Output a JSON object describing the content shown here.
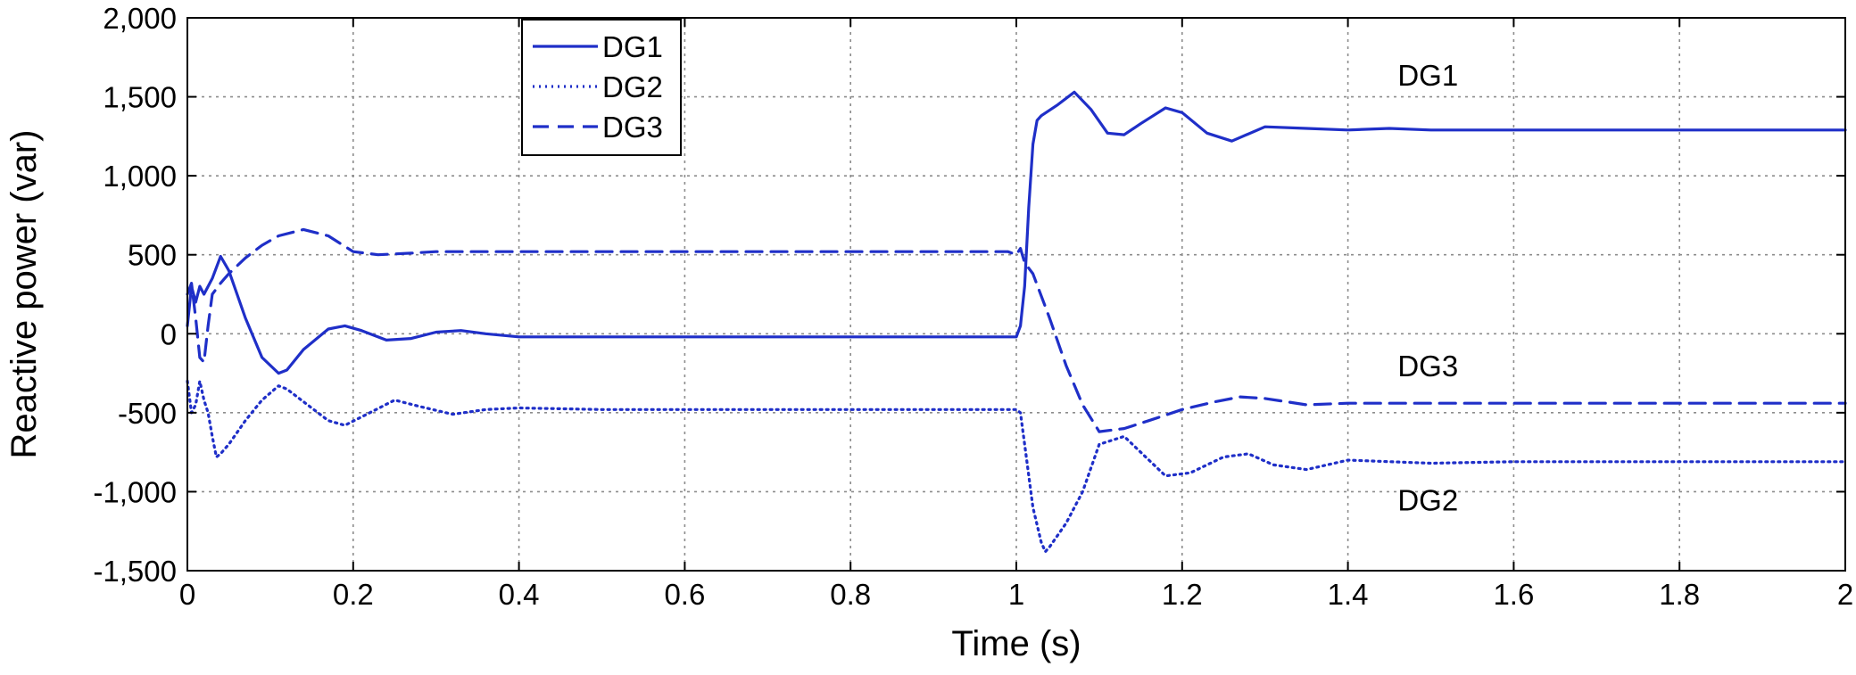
{
  "chart_data": {
    "type": "line",
    "title": "",
    "xlabel": "Time (s)",
    "ylabel": "Reactive power (var)",
    "xlim": [
      0,
      2
    ],
    "ylim": [
      -1500,
      2000
    ],
    "xticks": [
      0,
      0.2,
      0.4,
      0.6,
      0.8,
      1,
      1.2,
      1.4,
      1.6,
      1.8,
      2
    ],
    "xtick_labels": [
      "0",
      "0.2",
      "0.4",
      "0.6",
      "0.8",
      "1",
      "1.2",
      "1.4",
      "1.6",
      "1.8",
      "2"
    ],
    "yticks": [
      -1500,
      -1000,
      -500,
      0,
      500,
      1000,
      1500,
      2000
    ],
    "ytick_labels": [
      "-1,500",
      "-1,000",
      "-500",
      "0",
      "500",
      "1,000",
      "1,500",
      "2,000"
    ],
    "grid": true,
    "legend_position": "top-left",
    "line_color": "#1f2fc8",
    "series": [
      {
        "name": "DG1",
        "style": "solid",
        "x": [
          0,
          0.005,
          0.01,
          0.015,
          0.02,
          0.03,
          0.04,
          0.05,
          0.07,
          0.09,
          0.11,
          0.12,
          0.14,
          0.17,
          0.19,
          0.21,
          0.24,
          0.27,
          0.3,
          0.33,
          0.36,
          0.4,
          0.5,
          0.6,
          0.7,
          0.8,
          0.9,
          1.0,
          1.005,
          1.01,
          1.015,
          1.02,
          1.025,
          1.03,
          1.05,
          1.07,
          1.09,
          1.11,
          1.13,
          1.15,
          1.18,
          1.2,
          1.23,
          1.26,
          1.3,
          1.35,
          1.4,
          1.45,
          1.5,
          1.6,
          1.7,
          1.8,
          1.9,
          2.0
        ],
        "y": [
          50,
          300,
          200,
          300,
          250,
          350,
          490,
          400,
          100,
          -150,
          -250,
          -230,
          -100,
          30,
          50,
          20,
          -40,
          -30,
          10,
          20,
          0,
          -20,
          -20,
          -20,
          -20,
          -20,
          -20,
          -20,
          50,
          300,
          800,
          1200,
          1350,
          1380,
          1450,
          1530,
          1420,
          1270,
          1260,
          1330,
          1430,
          1400,
          1270,
          1220,
          1310,
          1300,
          1290,
          1300,
          1290,
          1290,
          1290,
          1290,
          1290,
          1290
        ]
      },
      {
        "name": "DG2",
        "style": "dotted",
        "x": [
          0,
          0.005,
          0.01,
          0.015,
          0.02,
          0.025,
          0.03,
          0.035,
          0.04,
          0.05,
          0.07,
          0.09,
          0.11,
          0.12,
          0.14,
          0.17,
          0.19,
          0.22,
          0.25,
          0.28,
          0.32,
          0.36,
          0.4,
          0.5,
          0.6,
          0.7,
          0.8,
          0.9,
          1.0,
          1.005,
          1.01,
          1.02,
          1.03,
          1.035,
          1.04,
          1.06,
          1.08,
          1.1,
          1.13,
          1.16,
          1.18,
          1.21,
          1.25,
          1.28,
          1.31,
          1.35,
          1.4,
          1.5,
          1.6,
          1.7,
          1.8,
          1.9,
          2.0
        ],
        "y": [
          -300,
          -500,
          -450,
          -300,
          -420,
          -500,
          -650,
          -780,
          -760,
          -700,
          -550,
          -420,
          -330,
          -350,
          -430,
          -550,
          -580,
          -500,
          -420,
          -460,
          -510,
          -480,
          -470,
          -480,
          -480,
          -480,
          -480,
          -480,
          -480,
          -500,
          -700,
          -1100,
          -1320,
          -1380,
          -1350,
          -1200,
          -1000,
          -700,
          -650,
          -800,
          -900,
          -880,
          -780,
          -760,
          -830,
          -860,
          -800,
          -820,
          -810,
          -810,
          -810,
          -810,
          -810
        ]
      },
      {
        "name": "DG3",
        "style": "dashed",
        "x": [
          0,
          0.005,
          0.01,
          0.015,
          0.02,
          0.025,
          0.03,
          0.04,
          0.05,
          0.07,
          0.09,
          0.11,
          0.14,
          0.17,
          0.2,
          0.23,
          0.27,
          0.3,
          0.4,
          0.5,
          0.6,
          0.7,
          0.8,
          0.9,
          0.99,
          1.0,
          1.005,
          1.01,
          1.02,
          1.04,
          1.06,
          1.08,
          1.1,
          1.13,
          1.16,
          1.2,
          1.24,
          1.27,
          1.3,
          1.35,
          1.4,
          1.5,
          1.6,
          1.7,
          1.8,
          1.9,
          2.0
        ],
        "y": [
          250,
          320,
          100,
          -150,
          -180,
          50,
          250,
          320,
          380,
          480,
          560,
          620,
          660,
          620,
          520,
          500,
          510,
          520,
          520,
          520,
          520,
          520,
          520,
          520,
          520,
          500,
          540,
          450,
          380,
          100,
          -200,
          -450,
          -620,
          -600,
          -550,
          -480,
          -430,
          -400,
          -410,
          -450,
          -440,
          -440,
          -440,
          -440,
          -440,
          -440,
          -440
        ]
      }
    ],
    "annotations": [
      {
        "text": "DG1",
        "x": 1.46,
        "y": 1570
      },
      {
        "text": "DG3",
        "x": 1.46,
        "y": -270
      },
      {
        "text": "DG2",
        "x": 1.46,
        "y": -1120
      }
    ]
  }
}
